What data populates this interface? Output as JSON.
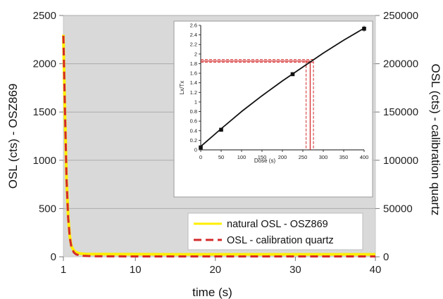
{
  "chart_data": [
    {
      "type": "line",
      "xlabel": "time (s)",
      "ylabel": "OSL (cts) - OSZ869",
      "ylabel_right": "OSL (cts) - calibration quartz",
      "xlim": [
        1,
        40
      ],
      "ylim": [
        0,
        2500
      ],
      "ylim_right": [
        0,
        250000
      ],
      "x_ticks": [
        1,
        10,
        20,
        30,
        40
      ],
      "y_ticks": [
        0,
        500,
        1000,
        1500,
        2000,
        2500
      ],
      "y_ticks_right": [
        0,
        50000,
        100000,
        150000,
        200000,
        250000
      ],
      "grid": "horizontal",
      "legend": "bottom-right",
      "series": [
        {
          "name": "natural OSL - OSZ869",
          "color": "#ffee00",
          "axis": "left",
          "x": [
            1,
            1.2,
            1.4,
            1.6,
            1.8,
            2,
            2.3,
            2.6,
            3,
            3.5,
            4,
            5,
            6,
            8,
            10,
            15,
            20,
            25,
            30,
            35,
            40
          ],
          "values": [
            2300,
            1450,
            800,
            420,
            210,
            110,
            65,
            45,
            35,
            30,
            28,
            28,
            27,
            26,
            26,
            25,
            25,
            25,
            25,
            25,
            25
          ]
        },
        {
          "name": "OSL - calibration quartz",
          "color": "#d42a2a",
          "axis": "right",
          "x": [
            1,
            1.1,
            1.2,
            1.4,
            1.6,
            1.8,
            2,
            2.3,
            2.6,
            3,
            3.5,
            4,
            5,
            6,
            8,
            10,
            15,
            20,
            25,
            30,
            35,
            40
          ],
          "values": [
            229000,
            190000,
            150000,
            80000,
            40000,
            20000,
            10000,
            4500,
            2500,
            1500,
            1000,
            800,
            600,
            500,
            450,
            400,
            400,
            400,
            400,
            400,
            400,
            400
          ]
        }
      ]
    },
    {
      "type": "scatter",
      "xlabel": "Dose (s)",
      "ylabel": "Lx/Tx",
      "xlim": [
        0,
        400
      ],
      "ylim": [
        0,
        2.6
      ],
      "x_ticks": [
        0,
        50,
        100,
        150,
        200,
        250,
        300,
        350,
        400
      ],
      "y_ticks": [
        0,
        0.2,
        0.4,
        0.6,
        0.8,
        1,
        1.2,
        1.4,
        1.6,
        1.8,
        2,
        2.2,
        2.4,
        2.6
      ],
      "points": [
        {
          "x": 0,
          "y": 0.05
        },
        {
          "x": 50,
          "y": 0.42
        },
        {
          "x": 225,
          "y": 1.58
        },
        {
          "x": 400,
          "y": 2.53
        }
      ],
      "fit_curve": {
        "color": "#111111",
        "x": [
          0,
          50,
          100,
          150,
          200,
          250,
          300,
          350,
          400
        ],
        "values": [
          0.07,
          0.44,
          0.8,
          1.13,
          1.44,
          1.73,
          2.02,
          2.29,
          2.54
        ]
      },
      "interpolation": {
        "color": "#d42a2a",
        "y_mean": 1.855,
        "y_low": 1.83,
        "y_high": 1.885,
        "x_mean": 268,
        "x_low": 258,
        "x_high": 276
      }
    }
  ]
}
